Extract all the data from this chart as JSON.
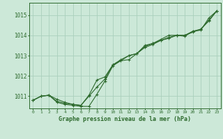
{
  "title": "Graphe pression niveau de la mer (hPa)",
  "x": [
    0,
    1,
    2,
    3,
    4,
    5,
    6,
    7,
    8,
    9,
    10,
    11,
    12,
    13,
    14,
    15,
    16,
    17,
    18,
    19,
    20,
    21,
    22,
    23
  ],
  "line1": [
    1010.8,
    1011.0,
    1011.05,
    1010.75,
    1010.65,
    1010.6,
    1010.55,
    1011.0,
    1011.45,
    1011.85,
    1012.55,
    1012.8,
    1013.0,
    1013.1,
    1013.45,
    1013.6,
    1013.75,
    1013.9,
    1014.0,
    1014.0,
    1014.2,
    1014.3,
    1014.75,
    1015.2
  ],
  "line2": [
    1010.8,
    1011.0,
    1011.05,
    1010.7,
    1010.6,
    1010.55,
    1010.5,
    1010.5,
    1011.1,
    1011.75,
    1012.5,
    1012.75,
    1012.8,
    1013.1,
    1013.5,
    1013.6,
    1013.8,
    1014.0,
    1014.0,
    1014.0,
    1014.15,
    1014.3,
    1014.7,
    1015.2
  ],
  "line3": [
    1010.8,
    1011.0,
    1011.05,
    1010.85,
    1010.7,
    1010.6,
    1010.55,
    1011.05,
    1011.8,
    1011.95,
    1012.55,
    1012.75,
    1013.0,
    1013.1,
    1013.4,
    1013.55,
    1013.75,
    1013.85,
    1014.0,
    1013.95,
    1014.2,
    1014.25,
    1014.85,
    1015.2
  ],
  "line_color": "#2d6a2d",
  "bg_color": "#cce8d8",
  "grid_color": "#aad0bc",
  "axis_color": "#2d6a2d",
  "text_color": "#2d6a2d",
  "ylim": [
    1010.4,
    1015.6
  ],
  "yticks": [
    1011,
    1012,
    1013,
    1014,
    1015
  ],
  "xlim": [
    -0.5,
    23.5
  ],
  "xticks": [
    0,
    1,
    2,
    3,
    4,
    5,
    6,
    7,
    8,
    9,
    10,
    11,
    12,
    13,
    14,
    15,
    16,
    17,
    18,
    19,
    20,
    21,
    22,
    23
  ]
}
